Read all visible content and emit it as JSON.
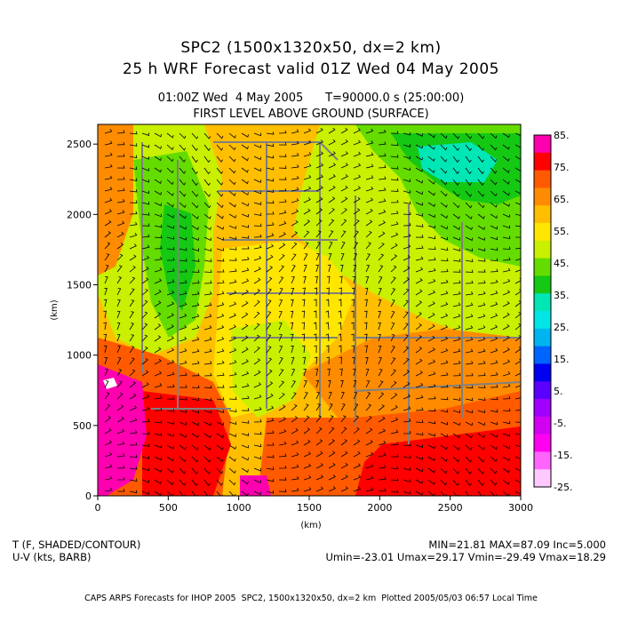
{
  "titles": {
    "line1": "SPC2 (1500x1320x50, dx=2 km)",
    "line2": "25 h WRF Forecast valid 01Z Wed 04 May 2005",
    "time_line": "01:00Z Wed  4 May 2005      T=90000.0 s (25:00:00)",
    "level_line": "FIRST LEVEL ABOVE GROUND (SURFACE)"
  },
  "fields": {
    "temp_label": "T (F, SHADED/CONTOUR)",
    "wind_label": "U-V (kts, BARB)",
    "stats_line1": "MIN=21.81 MAX=87.09 Inc=5.000",
    "stats_line2": "Umin=-23.01 Umax=29.17 Vmin=-29.49 Vmax=18.29"
  },
  "footer": "CAPS ARPS Forecasts for IHOP 2005  SPC2, 1500x1320x50, dx=2 km  Plotted 2005/05/03 06:57 Local Time",
  "chart_data": {
    "type": "heatmap",
    "xlabel": "(km)",
    "ylabel": "(km)",
    "xlim": [
      0,
      3000
    ],
    "ylim": [
      0,
      2640
    ],
    "x_ticks": [
      0,
      500,
      1000,
      1500,
      2000,
      2500,
      3000
    ],
    "y_ticks": [
      0,
      500,
      1000,
      1500,
      2000,
      2500
    ],
    "colorbar": {
      "labels": [
        "85.",
        "75.",
        "65.",
        "55.",
        "45.",
        "35.",
        "25.",
        "15.",
        "5.",
        "-5.",
        "-15.",
        "-25."
      ],
      "colors": [
        "#ff00b0",
        "#ff0000",
        "#ff5a00",
        "#ff8c00",
        "#ffbe00",
        "#ffe600",
        "#c8f000",
        "#64dc00",
        "#14c814",
        "#00e6b4",
        "#00e6e6",
        "#00b4f0",
        "#0064ff",
        "#0000f0",
        "#5a00ff",
        "#a000ff",
        "#d200f0",
        "#ff00f0",
        "#ff64ff",
        "#ffc8ff"
      ]
    }
  }
}
